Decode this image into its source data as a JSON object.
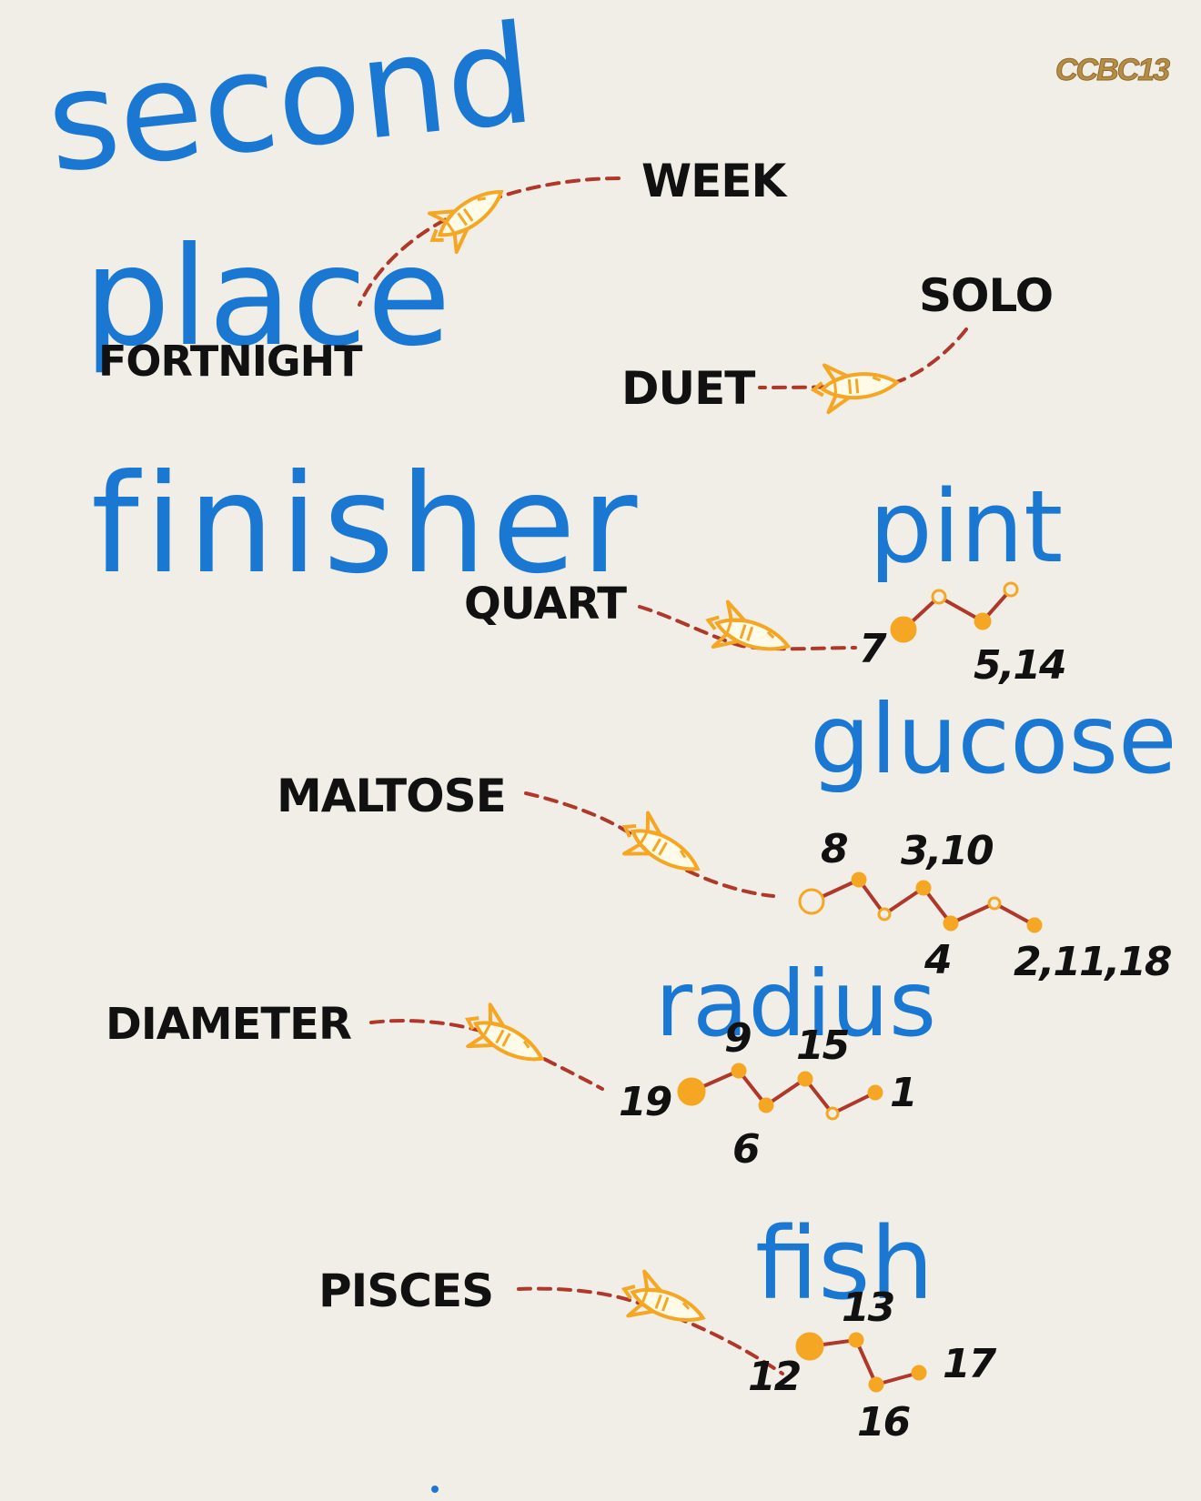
{
  "logo": "CCBC13",
  "handwriting": {
    "line1": "second",
    "line2": "place",
    "line3": "finisher",
    "pint": "pint",
    "glucose": "glucose",
    "radius": "radius",
    "fish": "fish"
  },
  "words": {
    "week": "WEEK",
    "fortnight": "FORTNIGHT",
    "solo": "SOLO",
    "duet": "DUET",
    "quart": "QUART",
    "maltose": "MALTOSE",
    "diameter": "DIAMETER",
    "pisces": "PISCES"
  },
  "numbers": {
    "n7": "7",
    "n5_14": "5,14",
    "n8": "8",
    "n3_10": "3,10",
    "n4": "4",
    "n2_11_18": "2,11,18",
    "n9": "9",
    "n15": "15",
    "n19": "19",
    "n6": "6",
    "n1": "1",
    "n13": "13",
    "n12": "12",
    "n17": "17",
    "n16": "16"
  },
  "colors": {
    "background": "#f0eee6",
    "handwriting": "#1a78d2",
    "dashed_path": "#b0382a",
    "rocket": "#f5a623",
    "dot": "#f5a623",
    "logo": "#b58d46"
  },
  "icons": [
    "rocket-icon",
    "dot-filled",
    "dot-hollow"
  ]
}
